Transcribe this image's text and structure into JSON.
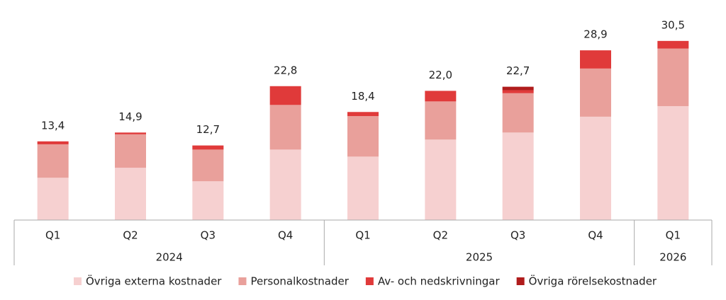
{
  "chart_data": {
    "type": "stacked_bar",
    "groups": [
      {
        "label": "2024",
        "quarters": [
          "Q1",
          "Q2",
          "Q3",
          "Q4"
        ]
      },
      {
        "label": "2025",
        "quarters": [
          "Q1",
          "Q2",
          "Q3",
          "Q4"
        ]
      },
      {
        "label": "2026",
        "quarters": [
          "Q1"
        ]
      }
    ],
    "series": [
      {
        "name": "Övriga externa kostnader",
        "color": "#f6d0d0",
        "values": [
          7.2,
          8.9,
          6.6,
          12.0,
          10.8,
          13.7,
          14.9,
          17.6,
          19.4
        ]
      },
      {
        "name": "Personalkostnader",
        "color": "#e9a09b",
        "values": [
          5.7,
          5.7,
          5.4,
          7.6,
          6.9,
          6.5,
          6.7,
          8.2,
          9.8
        ]
      },
      {
        "name": "Av- och nedskrivningar",
        "color": "#e03a3a",
        "values": [
          0.5,
          0.3,
          0.7,
          3.2,
          0.7,
          1.8,
          0.5,
          3.1,
          1.3
        ]
      },
      {
        "name": "Övriga rörelsekostnader",
        "color": "#b01c1c",
        "values": [
          0,
          0,
          0,
          0,
          0,
          0,
          0.6,
          0,
          0
        ]
      }
    ],
    "totals": [
      13.4,
      14.9,
      12.7,
      22.8,
      18.4,
      22.0,
      22.7,
      28.9,
      30.5
    ],
    "total_labels": [
      "13,4",
      "14,9",
      "12,7",
      "22,8",
      "18,4",
      "22,0",
      "22,7",
      "28,9",
      "30,5"
    ]
  }
}
